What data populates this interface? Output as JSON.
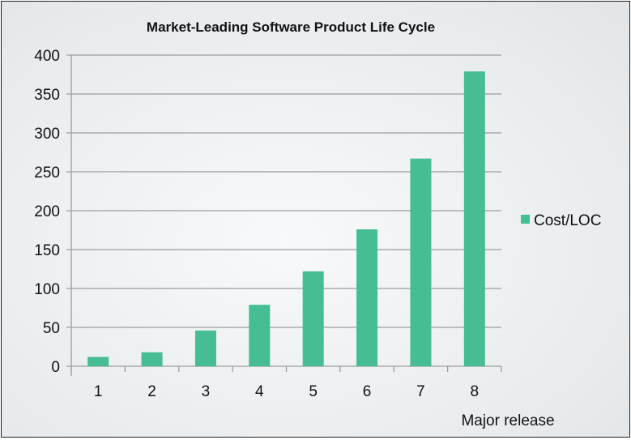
{
  "chart_data": {
    "type": "bar",
    "title": "Market-Leading Software Product Life Cycle",
    "xlabel": "Major release",
    "ylabel": "",
    "categories": [
      "1",
      "2",
      "3",
      "4",
      "5",
      "6",
      "7",
      "8"
    ],
    "series": [
      {
        "name": "Cost/LOC",
        "values": [
          12,
          18,
          46,
          79,
          122,
          176,
          267,
          379
        ],
        "color": "#46bd93"
      }
    ],
    "ylim": [
      0,
      400
    ],
    "yticks": [
      0,
      50,
      100,
      150,
      200,
      250,
      300,
      350,
      400
    ],
    "grid": true,
    "legend": "right"
  }
}
